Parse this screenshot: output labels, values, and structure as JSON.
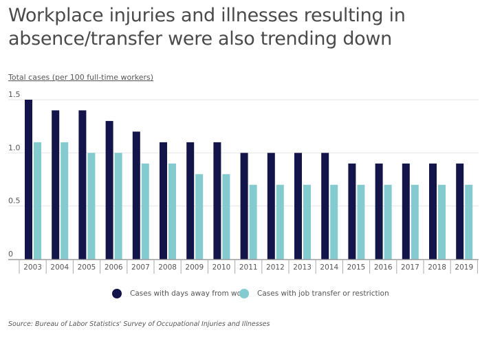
{
  "chart_data": {
    "type": "bar",
    "title": "Workplace injuries and illnesses resulting in absence/transfer were also trending down",
    "ylabel": "Total cases (per 100 full-time workers)",
    "xlabel": "",
    "ylim": [
      0,
      1.5
    ],
    "yticks": [
      0,
      0.5,
      1.0,
      1.5
    ],
    "ytick_labels": [
      "0",
      "0.5",
      "1.0",
      "1.5"
    ],
    "grid": true,
    "categories": [
      "2003",
      "2004",
      "2005",
      "2006",
      "2007",
      "2008",
      "2009",
      "2010",
      "2011",
      "2012",
      "2013",
      "2014",
      "2015",
      "2016",
      "2017",
      "2018",
      "2019"
    ],
    "series": [
      {
        "name": "Cases with days away from work",
        "color": "#13144a",
        "values": [
          1.5,
          1.4,
          1.4,
          1.3,
          1.2,
          1.1,
          1.1,
          1.1,
          1.0,
          1.0,
          1.0,
          1.0,
          0.9,
          0.9,
          0.9,
          0.9,
          0.9
        ]
      },
      {
        "name": "Cases with job transfer or restriction",
        "color": "#84cbd0",
        "values": [
          1.1,
          1.1,
          1.0,
          1.0,
          0.9,
          0.9,
          0.8,
          0.8,
          0.7,
          0.7,
          0.7,
          0.7,
          0.7,
          0.7,
          0.7,
          0.7,
          0.7
        ]
      }
    ],
    "legend": "bottom",
    "source": "Source:  Bureau of Labor Statistics' Survey of Occupational Injuries and Illnesses"
  },
  "title_lines": [
    "Workplace injuries and illnesses resulting in",
    "absence/transfer were also trending down"
  ]
}
